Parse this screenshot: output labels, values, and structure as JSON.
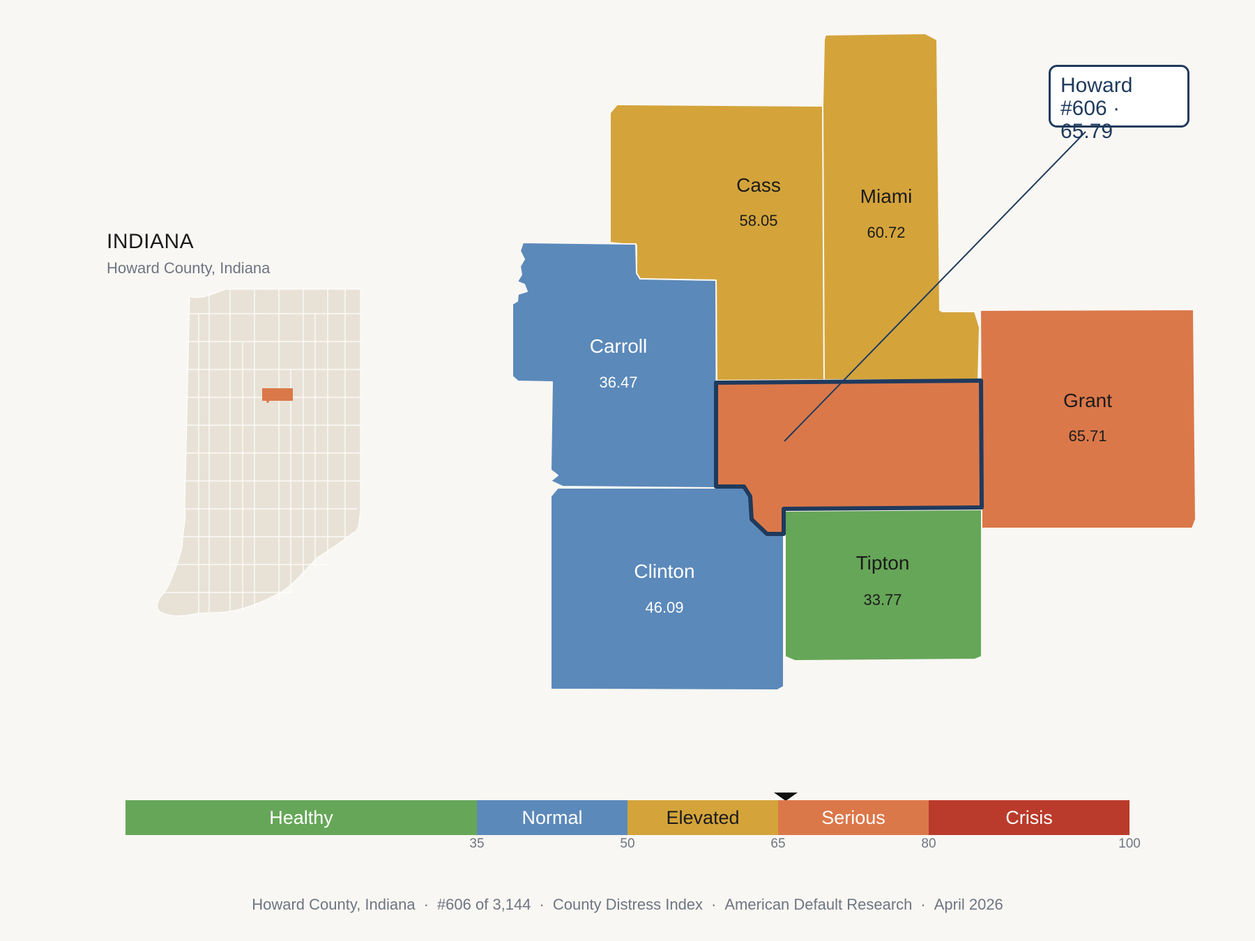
{
  "inset": {
    "title": "INDIANA",
    "subtitle": "Howard County, Indiana",
    "base_color": "#e8e2d6",
    "highlight_color": "#db784a"
  },
  "counties": [
    {
      "name": "Cass",
      "score": "58.05",
      "category": "Elevated",
      "color": "#d4a43b"
    },
    {
      "name": "Miami",
      "score": "60.72",
      "category": "Elevated",
      "color": "#d4a43b"
    },
    {
      "name": "Carroll",
      "score": "36.47",
      "category": "Normal",
      "color": "#5b89ba"
    },
    {
      "name": "Howard",
      "score": "65.79",
      "category": "Serious",
      "color": "#db784a"
    },
    {
      "name": "Grant",
      "score": "65.71",
      "category": "Serious",
      "color": "#db784a"
    },
    {
      "name": "Clinton",
      "score": "46.09",
      "category": "Normal",
      "color": "#5b89ba"
    },
    {
      "name": "Tipton",
      "score": "33.77",
      "category": "Healthy",
      "color": "#66a658"
    }
  ],
  "callout": {
    "line1": "Howard",
    "line2": "#606 · 65.79",
    "border_color": "#1f3a5c"
  },
  "scale": {
    "min": 0,
    "max": 100,
    "marker_value": 65.79,
    "segments": [
      {
        "label": "Healthy",
        "from": 0,
        "to": 35,
        "color": "#66a658"
      },
      {
        "label": "Normal",
        "from": 35,
        "to": 50,
        "color": "#5b89ba"
      },
      {
        "label": "Elevated",
        "from": 50,
        "to": 65,
        "color": "#d4a43b"
      },
      {
        "label": "Serious",
        "from": 65,
        "to": 80,
        "color": "#db784a"
      },
      {
        "label": "Crisis",
        "from": 80,
        "to": 100,
        "color": "#ba3b2b"
      }
    ],
    "ticks": [
      "35",
      "50",
      "65",
      "80",
      "100"
    ]
  },
  "footer": {
    "place": "Howard County, Indiana",
    "rank": "#606 of 3,144",
    "index": "County Distress Index",
    "source": "American Default Research",
    "date": "April 2026",
    "separator": "·"
  }
}
